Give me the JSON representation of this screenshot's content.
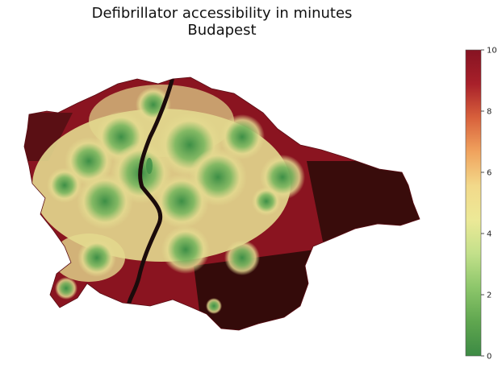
{
  "title_line1": "Defibrillator accessibility in minutes",
  "title_line2": "Budapest",
  "colorbar": {
    "min": 0,
    "max": 10,
    "ticks": [
      "0",
      "2",
      "4",
      "6",
      "8",
      "10"
    ],
    "colors": [
      "#3c8a44",
      "#5fa64f",
      "#8cc66a",
      "#c2e08a",
      "#ece997",
      "#f2d98a",
      "#f0a35e",
      "#d8613c",
      "#a8202a",
      "#861322"
    ]
  },
  "map_colors": {
    "far": "#8a1420",
    "very_far": "#2a0a08",
    "mid": "#e3d98f",
    "near": "#3d8f46",
    "near_light": "#8cc26a",
    "river": "#1b0b0b"
  }
}
